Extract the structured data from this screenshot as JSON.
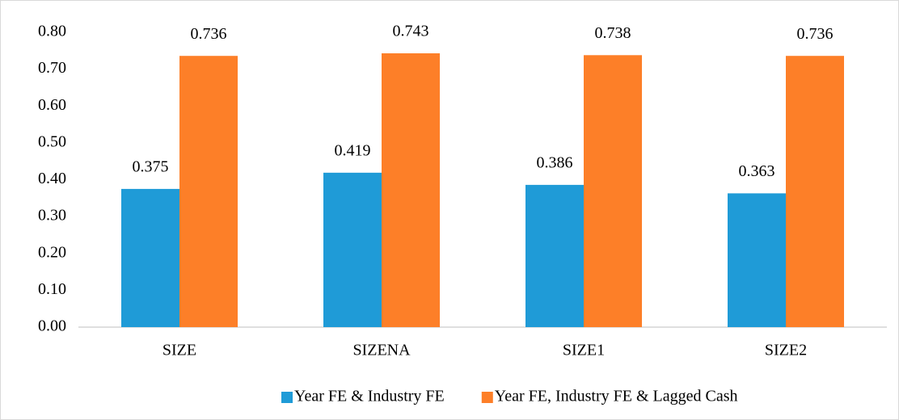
{
  "chart_data": {
    "type": "bar",
    "categories": [
      "SIZE",
      "SIZENA",
      "SIZE1",
      "SIZE2"
    ],
    "series": [
      {
        "name": "Year FE & Industry FE",
        "color": "#1f9bd7",
        "values": [
          0.375,
          0.419,
          0.386,
          0.363
        ]
      },
      {
        "name": "Year FE, Industry FE & Lagged Cash",
        "color": "#fd7f28",
        "values": [
          0.736,
          0.743,
          0.738,
          0.736
        ]
      }
    ],
    "ylim": [
      0,
      0.8
    ],
    "yticks": [
      {
        "value": 0,
        "label": "0.00"
      },
      {
        "value": 0.1,
        "label": "0.10"
      },
      {
        "value": 0.2,
        "label": "0.20"
      },
      {
        "value": 0.3,
        "label": "0.30"
      },
      {
        "value": 0.4,
        "label": "0.40"
      },
      {
        "value": 0.5,
        "label": "0.50"
      },
      {
        "value": 0.6,
        "label": "0.60"
      },
      {
        "value": 0.7,
        "label": "0.70"
      },
      {
        "value": 0.8,
        "label": "0.80"
      }
    ],
    "grid": false,
    "legend": "bottom"
  }
}
